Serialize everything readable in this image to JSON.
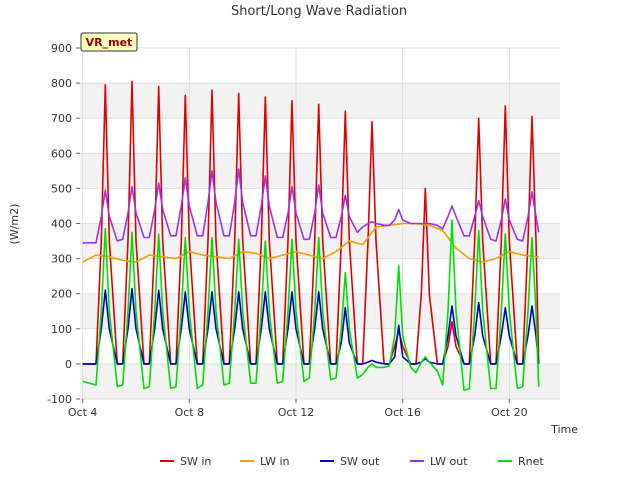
{
  "chart_data": {
    "type": "line",
    "title": "Short/Long Wave Radiation",
    "xlabel": "Time",
    "ylabel": "(W/m2)",
    "station_label": "VR_met",
    "xlim": [
      3.9,
      21.9
    ],
    "ylim": [
      -100,
      900
    ],
    "y_ticks": [
      -100,
      0,
      100,
      200,
      300,
      400,
      500,
      600,
      700,
      800,
      900
    ],
    "x_ticks": [
      {
        "label": "Oct 4",
        "value": 4
      },
      {
        "label": "Oct 8",
        "value": 8
      },
      {
        "label": "Oct 12",
        "value": 12
      },
      {
        "label": "Oct 16",
        "value": 16
      },
      {
        "label": "Oct 20",
        "value": 20
      }
    ],
    "grid": true,
    "legend_position": "bottom",
    "series": [
      {
        "name": "SW in",
        "color": "#e00000",
        "x": [
          4.0,
          4.5,
          4.7,
          4.85,
          5.0,
          5.3,
          5.5,
          5.7,
          5.85,
          6.0,
          6.3,
          6.5,
          6.7,
          6.85,
          7.0,
          7.3,
          7.5,
          7.7,
          7.85,
          8.0,
          8.3,
          8.5,
          8.7,
          8.85,
          9.0,
          9.3,
          9.5,
          9.7,
          9.85,
          10.0,
          10.3,
          10.5,
          10.7,
          10.85,
          11.0,
          11.3,
          11.5,
          11.7,
          11.85,
          12.0,
          12.3,
          12.5,
          12.7,
          12.85,
          13.0,
          13.3,
          13.5,
          13.7,
          13.85,
          14.0,
          14.3,
          14.5,
          14.7,
          14.85,
          15.0,
          15.3,
          15.5,
          15.7,
          15.85,
          16.0,
          16.3,
          16.5,
          16.7,
          16.85,
          17.0,
          17.3,
          17.5,
          17.7,
          17.85,
          18.0,
          18.3,
          18.5,
          18.7,
          18.85,
          19.0,
          19.3,
          19.5,
          19.7,
          19.85,
          20.0,
          20.3,
          20.5,
          20.7,
          20.85,
          21.0,
          21.1
        ],
        "y": [
          0,
          0,
          350,
          795,
          350,
          0,
          0,
          350,
          805,
          350,
          0,
          0,
          350,
          790,
          350,
          0,
          0,
          350,
          765,
          350,
          0,
          0,
          350,
          780,
          350,
          0,
          0,
          350,
          770,
          350,
          0,
          0,
          350,
          760,
          350,
          0,
          0,
          350,
          750,
          350,
          0,
          0,
          350,
          740,
          350,
          0,
          0,
          350,
          720,
          350,
          0,
          0,
          350,
          690,
          350,
          0,
          0,
          50,
          95,
          50,
          0,
          0,
          200,
          500,
          200,
          0,
          0,
          50,
          120,
          50,
          0,
          0,
          350,
          700,
          350,
          0,
          0,
          350,
          735,
          350,
          0,
          0,
          350,
          705,
          350,
          0
        ]
      },
      {
        "name": "LW in",
        "color": "#f0a000",
        "x": [
          4.0,
          4.5,
          5.0,
          5.5,
          6.0,
          6.5,
          7.0,
          7.5,
          8.0,
          8.5,
          9.0,
          9.5,
          10.0,
          10.5,
          11.0,
          11.5,
          12.0,
          12.5,
          13.0,
          13.5,
          14.0,
          14.5,
          15.0,
          15.5,
          16.0,
          16.5,
          17.0,
          17.5,
          18.0,
          18.5,
          19.0,
          19.5,
          20.0,
          20.5,
          21.0,
          21.1
        ],
        "y": [
          290,
          310,
          305,
          295,
          290,
          310,
          305,
          300,
          320,
          310,
          305,
          300,
          320,
          315,
          300,
          310,
          320,
          310,
          300,
          320,
          350,
          340,
          390,
          395,
          400,
          400,
          395,
          380,
          330,
          300,
          290,
          300,
          320,
          310,
          305,
          305
        ]
      },
      {
        "name": "SW out",
        "color": "#0000cc",
        "x": [
          4.0,
          4.5,
          4.7,
          4.85,
          5.0,
          5.3,
          5.5,
          5.7,
          5.85,
          6.0,
          6.3,
          6.5,
          6.7,
          6.85,
          7.0,
          7.3,
          7.5,
          7.7,
          7.85,
          8.0,
          8.3,
          8.5,
          8.7,
          8.85,
          9.0,
          9.3,
          9.5,
          9.7,
          9.85,
          10.0,
          10.3,
          10.5,
          10.7,
          10.85,
          11.0,
          11.3,
          11.5,
          11.7,
          11.85,
          12.0,
          12.3,
          12.5,
          12.7,
          12.85,
          13.0,
          13.3,
          13.5,
          13.7,
          13.85,
          14.0,
          14.3,
          14.5,
          14.7,
          14.85,
          15.0,
          15.3,
          15.5,
          15.7,
          15.85,
          16.0,
          16.3,
          16.5,
          16.7,
          16.85,
          17.0,
          17.3,
          17.5,
          17.7,
          17.85,
          18.0,
          18.3,
          18.5,
          18.7,
          18.85,
          19.0,
          19.3,
          19.5,
          19.7,
          19.85,
          20.0,
          20.3,
          20.5,
          20.7,
          20.85,
          21.0,
          21.1
        ],
        "y": [
          0,
          0,
          100,
          210,
          100,
          0,
          0,
          100,
          215,
          100,
          0,
          0,
          100,
          210,
          100,
          0,
          0,
          100,
          205,
          100,
          0,
          0,
          100,
          205,
          100,
          0,
          0,
          100,
          205,
          100,
          0,
          0,
          100,
          205,
          100,
          0,
          0,
          100,
          205,
          100,
          0,
          0,
          100,
          205,
          100,
          0,
          0,
          60,
          160,
          60,
          0,
          0,
          5,
          10,
          5,
          0,
          0,
          20,
          110,
          20,
          0,
          0,
          5,
          15,
          5,
          0,
          0,
          80,
          165,
          80,
          0,
          0,
          80,
          175,
          80,
          0,
          0,
          80,
          160,
          80,
          0,
          0,
          80,
          165,
          80,
          0
        ]
      },
      {
        "name": "LW out",
        "color": "#9933ee",
        "x": [
          4.0,
          4.5,
          4.7,
          4.85,
          5.0,
          5.3,
          5.5,
          5.7,
          5.85,
          6.0,
          6.3,
          6.5,
          6.7,
          6.85,
          7.0,
          7.3,
          7.5,
          7.7,
          7.85,
          8.0,
          8.3,
          8.5,
          8.7,
          8.85,
          9.0,
          9.3,
          9.5,
          9.7,
          9.85,
          10.0,
          10.3,
          10.5,
          10.7,
          10.85,
          11.0,
          11.3,
          11.5,
          11.7,
          11.85,
          12.0,
          12.3,
          12.5,
          12.7,
          12.85,
          13.0,
          13.3,
          13.5,
          13.7,
          13.85,
          14.0,
          14.3,
          14.5,
          14.7,
          14.85,
          15.0,
          15.3,
          15.5,
          15.7,
          15.85,
          16.0,
          16.3,
          16.5,
          16.7,
          16.85,
          17.0,
          17.3,
          17.5,
          17.7,
          17.85,
          18.0,
          18.3,
          18.5,
          18.7,
          18.85,
          19.0,
          19.3,
          19.5,
          19.7,
          19.85,
          20.0,
          20.3,
          20.5,
          20.7,
          20.85,
          21.0,
          21.1
        ],
        "y": [
          345,
          345,
          420,
          495,
          420,
          350,
          355,
          430,
          505,
          430,
          360,
          360,
          440,
          515,
          440,
          365,
          365,
          450,
          530,
          450,
          365,
          365,
          460,
          550,
          460,
          365,
          365,
          460,
          555,
          460,
          365,
          365,
          450,
          535,
          450,
          360,
          360,
          430,
          505,
          430,
          355,
          355,
          430,
          510,
          430,
          360,
          360,
          420,
          480,
          420,
          375,
          390,
          400,
          405,
          400,
          395,
          395,
          410,
          440,
          410,
          400,
          400,
          400,
          400,
          400,
          395,
          385,
          420,
          450,
          420,
          365,
          365,
          420,
          465,
          420,
          355,
          350,
          410,
          470,
          410,
          355,
          350,
          420,
          490,
          420,
          375
        ]
      },
      {
        "name": "Rnet",
        "color": "#00e000",
        "x": [
          4.0,
          4.5,
          4.7,
          4.85,
          5.0,
          5.3,
          5.5,
          5.7,
          5.85,
          6.0,
          6.3,
          6.5,
          6.7,
          6.85,
          7.0,
          7.3,
          7.5,
          7.7,
          7.85,
          8.0,
          8.3,
          8.5,
          8.7,
          8.85,
          9.0,
          9.3,
          9.5,
          9.7,
          9.85,
          10.0,
          10.3,
          10.5,
          10.7,
          10.85,
          11.0,
          11.3,
          11.5,
          11.7,
          11.85,
          12.0,
          12.3,
          12.5,
          12.7,
          12.85,
          13.0,
          13.3,
          13.5,
          13.7,
          13.85,
          14.0,
          14.3,
          14.5,
          14.7,
          14.85,
          15.0,
          15.3,
          15.5,
          15.7,
          15.85,
          16.0,
          16.3,
          16.5,
          16.7,
          16.85,
          17.0,
          17.3,
          17.5,
          17.7,
          17.85,
          18.0,
          18.3,
          18.5,
          18.7,
          18.85,
          19.0,
          19.3,
          19.5,
          19.7,
          19.85,
          20.0,
          20.3,
          20.5,
          20.7,
          20.85,
          21.0,
          21.1
        ],
        "y": [
          -50,
          -60,
          150,
          385,
          150,
          -65,
          -60,
          150,
          375,
          150,
          -70,
          -65,
          150,
          370,
          150,
          -70,
          -65,
          150,
          360,
          150,
          -70,
          -60,
          150,
          360,
          150,
          -60,
          -55,
          150,
          355,
          150,
          -55,
          -55,
          150,
          350,
          150,
          -55,
          -50,
          150,
          355,
          150,
          -50,
          -40,
          150,
          360,
          150,
          -45,
          -40,
          100,
          260,
          100,
          -40,
          -30,
          -10,
          0,
          -10,
          -10,
          -5,
          80,
          280,
          80,
          -10,
          -25,
          5,
          20,
          5,
          -20,
          -60,
          150,
          410,
          150,
          -75,
          -70,
          150,
          380,
          150,
          -70,
          -70,
          150,
          370,
          150,
          -70,
          -65,
          150,
          360,
          150,
          -65
        ]
      }
    ]
  }
}
